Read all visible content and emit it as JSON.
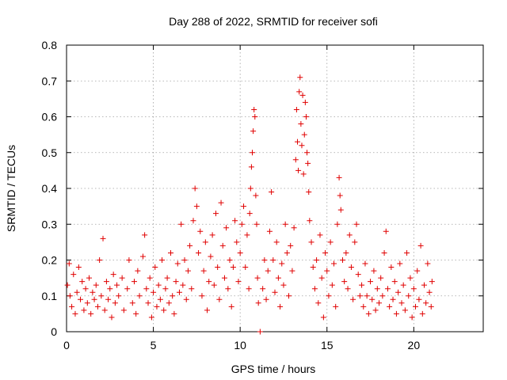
{
  "chart_data": {
    "type": "scatter",
    "title": "Day 288 of 2022, SRMTID for receiver sofi",
    "xlabel": "GPS time / hours",
    "ylabel": "SRMTID / TECUs",
    "xlim": [
      0,
      24
    ],
    "ylim": [
      0,
      0.8
    ],
    "xticks": [
      0,
      5,
      10,
      15,
      20
    ],
    "xtick_labels": [
      "0",
      "5",
      "10",
      "15",
      "20"
    ],
    "yticks": [
      0,
      0.1,
      0.2,
      0.3,
      0.4,
      0.5,
      0.6,
      0.7,
      0.8
    ],
    "ytick_labels": [
      "0",
      "0.1",
      "0.2",
      "0.3",
      "0.4",
      "0.5",
      "0.6",
      "0.7",
      "0.8"
    ],
    "grid": true,
    "marker": "+",
    "color": "#e00000",
    "series": [
      {
        "name": "SRMTID",
        "points": [
          [
            0.05,
            0.13
          ],
          [
            0.15,
            0.19
          ],
          [
            0.2,
            0.1
          ],
          [
            0.3,
            0.07
          ],
          [
            0.4,
            0.16
          ],
          [
            0.5,
            0.05
          ],
          [
            0.6,
            0.11
          ],
          [
            0.7,
            0.18
          ],
          [
            0.8,
            0.09
          ],
          [
            0.9,
            0.14
          ],
          [
            1.0,
            0.06
          ],
          [
            1.1,
            0.12
          ],
          [
            1.2,
            0.08
          ],
          [
            1.3,
            0.15
          ],
          [
            1.4,
            0.05
          ],
          [
            1.5,
            0.11
          ],
          [
            1.6,
            0.09
          ],
          [
            1.7,
            0.13
          ],
          [
            1.8,
            0.07
          ],
          [
            1.9,
            0.2
          ],
          [
            2.0,
            0.1
          ],
          [
            2.1,
            0.26
          ],
          [
            2.2,
            0.06
          ],
          [
            2.3,
            0.14
          ],
          [
            2.4,
            0.09
          ],
          [
            2.5,
            0.12
          ],
          [
            2.6,
            0.04
          ],
          [
            2.7,
            0.16
          ],
          [
            2.8,
            0.08
          ],
          [
            2.9,
            0.13
          ],
          [
            3.0,
            0.1
          ],
          [
            3.2,
            0.15
          ],
          [
            3.3,
            0.06
          ],
          [
            3.5,
            0.12
          ],
          [
            3.6,
            0.2
          ],
          [
            3.8,
            0.08
          ],
          [
            3.9,
            0.14
          ],
          [
            4.0,
            0.05
          ],
          [
            4.1,
            0.17
          ],
          [
            4.2,
            0.1
          ],
          [
            4.4,
            0.21
          ],
          [
            4.5,
            0.27
          ],
          [
            4.6,
            0.12
          ],
          [
            4.7,
            0.08
          ],
          [
            4.8,
            0.15
          ],
          [
            4.9,
            0.04
          ],
          [
            5.0,
            0.11
          ],
          [
            5.1,
            0.18
          ],
          [
            5.2,
            0.07
          ],
          [
            5.3,
            0.13
          ],
          [
            5.4,
            0.09
          ],
          [
            5.5,
            0.2
          ],
          [
            5.6,
            0.06
          ],
          [
            5.7,
            0.12
          ],
          [
            5.8,
            0.15
          ],
          [
            5.9,
            0.08
          ],
          [
            6.0,
            0.22
          ],
          [
            6.1,
            0.1
          ],
          [
            6.2,
            0.05
          ],
          [
            6.3,
            0.14
          ],
          [
            6.4,
            0.19
          ],
          [
            6.5,
            0.11
          ],
          [
            6.6,
            0.3
          ],
          [
            6.7,
            0.13
          ],
          [
            6.8,
            0.2
          ],
          [
            6.9,
            0.09
          ],
          [
            7.0,
            0.17
          ],
          [
            7.1,
            0.24
          ],
          [
            7.2,
            0.12
          ],
          [
            7.3,
            0.31
          ],
          [
            7.4,
            0.4
          ],
          [
            7.5,
            0.35
          ],
          [
            7.6,
            0.22
          ],
          [
            7.7,
            0.28
          ],
          [
            7.8,
            0.1
          ],
          [
            7.9,
            0.17
          ],
          [
            8.0,
            0.25
          ],
          [
            8.1,
            0.06
          ],
          [
            8.2,
            0.14
          ],
          [
            8.3,
            0.21
          ],
          [
            8.4,
            0.27
          ],
          [
            8.5,
            0.13
          ],
          [
            8.6,
            0.33
          ],
          [
            8.7,
            0.18
          ],
          [
            8.8,
            0.09
          ],
          [
            8.9,
            0.36
          ],
          [
            9.0,
            0.24
          ],
          [
            9.1,
            0.15
          ],
          [
            9.2,
            0.29
          ],
          [
            9.3,
            0.12
          ],
          [
            9.4,
            0.2
          ],
          [
            9.5,
            0.07
          ],
          [
            9.6,
            0.18
          ],
          [
            9.7,
            0.31
          ],
          [
            9.8,
            0.25
          ],
          [
            9.9,
            0.14
          ],
          [
            10.0,
            0.22
          ],
          [
            10.1,
            0.3
          ],
          [
            10.2,
            0.35
          ],
          [
            10.3,
            0.18
          ],
          [
            10.4,
            0.27
          ],
          [
            10.5,
            0.12
          ],
          [
            10.55,
            0.33
          ],
          [
            10.6,
            0.4
          ],
          [
            10.65,
            0.46
          ],
          [
            10.7,
            0.5
          ],
          [
            10.75,
            0.56
          ],
          [
            10.8,
            0.62
          ],
          [
            10.85,
            0.6
          ],
          [
            10.9,
            0.38
          ],
          [
            10.95,
            0.3
          ],
          [
            11.0,
            0.15
          ],
          [
            11.05,
            0.08
          ],
          [
            11.15,
            0.0
          ],
          [
            11.3,
            0.12
          ],
          [
            11.4,
            0.2
          ],
          [
            11.5,
            0.09
          ],
          [
            11.6,
            0.17
          ],
          [
            11.7,
            0.28
          ],
          [
            11.8,
            0.39
          ],
          [
            11.9,
            0.2
          ],
          [
            12.0,
            0.11
          ],
          [
            12.1,
            0.25
          ],
          [
            12.2,
            0.15
          ],
          [
            12.3,
            0.07
          ],
          [
            12.4,
            0.19
          ],
          [
            12.5,
            0.13
          ],
          [
            12.6,
            0.3
          ],
          [
            12.7,
            0.22
          ],
          [
            12.8,
            0.1
          ],
          [
            12.9,
            0.24
          ],
          [
            13.0,
            0.17
          ],
          [
            13.1,
            0.29
          ],
          [
            13.2,
            0.48
          ],
          [
            13.25,
            0.62
          ],
          [
            13.3,
            0.53
          ],
          [
            13.35,
            0.45
          ],
          [
            13.4,
            0.67
          ],
          [
            13.45,
            0.71
          ],
          [
            13.5,
            0.58
          ],
          [
            13.55,
            0.52
          ],
          [
            13.6,
            0.66
          ],
          [
            13.65,
            0.44
          ],
          [
            13.7,
            0.55
          ],
          [
            13.75,
            0.64
          ],
          [
            13.8,
            0.6
          ],
          [
            13.85,
            0.5
          ],
          [
            13.9,
            0.47
          ],
          [
            13.95,
            0.39
          ],
          [
            14.0,
            0.31
          ],
          [
            14.1,
            0.25
          ],
          [
            14.2,
            0.18
          ],
          [
            14.3,
            0.12
          ],
          [
            14.4,
            0.2
          ],
          [
            14.5,
            0.08
          ],
          [
            14.6,
            0.27
          ],
          [
            14.7,
            0.15
          ],
          [
            14.8,
            0.04
          ],
          [
            14.9,
            0.22
          ],
          [
            15.0,
            0.17
          ],
          [
            15.1,
            0.1
          ],
          [
            15.2,
            0.25
          ],
          [
            15.3,
            0.13
          ],
          [
            15.4,
            0.19
          ],
          [
            15.5,
            0.07
          ],
          [
            15.6,
            0.3
          ],
          [
            15.7,
            0.43
          ],
          [
            15.75,
            0.38
          ],
          [
            15.8,
            0.34
          ],
          [
            15.9,
            0.2
          ],
          [
            16.0,
            0.14
          ],
          [
            16.1,
            0.22
          ],
          [
            16.2,
            0.12
          ],
          [
            16.3,
            0.27
          ],
          [
            16.4,
            0.18
          ],
          [
            16.5,
            0.09
          ],
          [
            16.6,
            0.25
          ],
          [
            16.7,
            0.3
          ],
          [
            16.8,
            0.16
          ],
          [
            16.9,
            0.1
          ],
          [
            17.0,
            0.13
          ],
          [
            17.1,
            0.07
          ],
          [
            17.2,
            0.19
          ],
          [
            17.3,
            0.1
          ],
          [
            17.4,
            0.05
          ],
          [
            17.5,
            0.14
          ],
          [
            17.6,
            0.09
          ],
          [
            17.7,
            0.17
          ],
          [
            17.8,
            0.06
          ],
          [
            17.9,
            0.12
          ],
          [
            18.0,
            0.08
          ],
          [
            18.1,
            0.15
          ],
          [
            18.2,
            0.1
          ],
          [
            18.3,
            0.22
          ],
          [
            18.4,
            0.28
          ],
          [
            18.5,
            0.12
          ],
          [
            18.6,
            0.07
          ],
          [
            18.7,
            0.18
          ],
          [
            18.8,
            0.09
          ],
          [
            18.9,
            0.14
          ],
          [
            19.0,
            0.05
          ],
          [
            19.1,
            0.11
          ],
          [
            19.2,
            0.19
          ],
          [
            19.3,
            0.08
          ],
          [
            19.4,
            0.13
          ],
          [
            19.5,
            0.06
          ],
          [
            19.6,
            0.22
          ],
          [
            19.7,
            0.1
          ],
          [
            19.8,
            0.15
          ],
          [
            19.9,
            0.04
          ],
          [
            20.0,
            0.12
          ],
          [
            20.1,
            0.07
          ],
          [
            20.2,
            0.17
          ],
          [
            20.3,
            0.09
          ],
          [
            20.4,
            0.24
          ],
          [
            20.5,
            0.05
          ],
          [
            20.6,
            0.13
          ],
          [
            20.7,
            0.08
          ],
          [
            20.8,
            0.19
          ],
          [
            20.9,
            0.11
          ],
          [
            21.0,
            0.07
          ],
          [
            21.05,
            0.14
          ]
        ]
      }
    ]
  }
}
